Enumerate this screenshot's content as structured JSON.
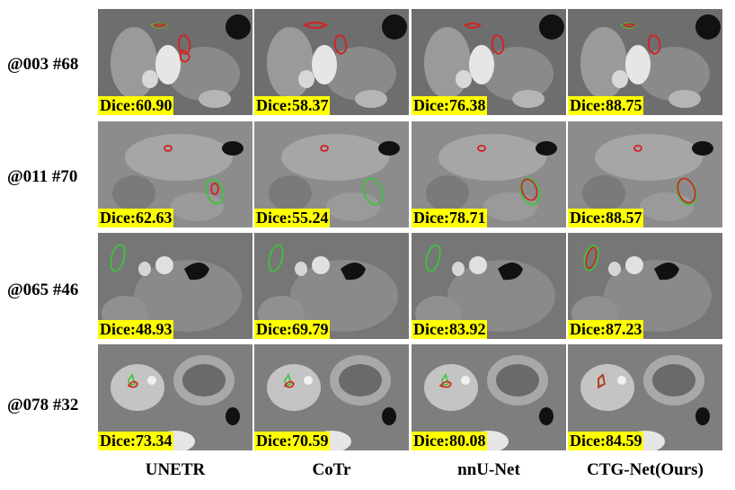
{
  "columns": [
    "UNETR",
    "CoTr",
    "nnU-Net",
    "CTG-Net(Ours)"
  ],
  "rows": [
    {
      "label": "@003 #68",
      "dice": [
        "Dice:60.90",
        "Dice:58.37",
        "Dice:76.38",
        "Dice:88.75"
      ]
    },
    {
      "label": "@011 #70",
      "dice": [
        "Dice:62.63",
        "Dice:55.24",
        "Dice:78.71",
        "Dice:88.57"
      ]
    },
    {
      "label": "@065 #46",
      "dice": [
        "Dice:48.93",
        "Dice:69.79",
        "Dice:83.92",
        "Dice:87.23"
      ]
    },
    {
      "label": "@078 #32",
      "dice": [
        "Dice:73.34",
        "Dice:70.59",
        "Dice:80.08",
        "Dice:84.59"
      ]
    }
  ],
  "colors": {
    "prediction_contour": "#d42020",
    "ground_truth_contour": "#3cc43c",
    "dice_background": "#ffff00"
  }
}
